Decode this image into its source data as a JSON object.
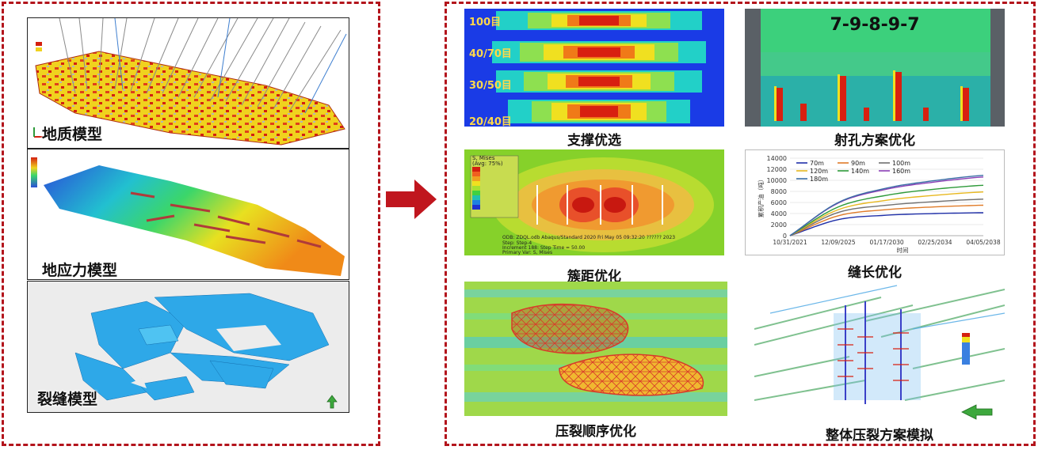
{
  "left_models": [
    {
      "label": "地质模型"
    },
    {
      "label": "地应力模型"
    },
    {
      "label": "裂缝模型"
    }
  ],
  "right_panels": {
    "proppant": {
      "caption": "支撑优选",
      "meshes": [
        "100目",
        "40/70目",
        "30/50目",
        "20/40目"
      ]
    },
    "perforation": {
      "caption": "射孔方案优化",
      "scheme": "7-9-8-9-7"
    },
    "spacing": {
      "caption": "簇距优化",
      "legend_title": "S, Mises",
      "legend_sub": "(Avg: 75%)",
      "footer_line1": "ODB: ZDQL.odb    Abaqus/Standard 2020    Fri May 05 09:32:20 ?????? 2023",
      "footer_line2": "Step: Step-4",
      "footer_line3": "Increment    188: Step Time =     50.00",
      "footer_line4": "Primary Var: S, Mises"
    },
    "frac_length": {
      "caption": "缝长优化"
    },
    "sequence": {
      "caption": "压裂顺序优化"
    },
    "overall": {
      "caption": "整体压裂方案模拟"
    }
  },
  "chart_data": {
    "type": "line",
    "title": "",
    "xlabel": "时间",
    "ylabel": "累积产油（吨）",
    "x_ticks": [
      "10/31/2021",
      "12/09/2025",
      "01/17/2030",
      "02/25/2034",
      "04/05/2038"
    ],
    "y_ticks": [
      0,
      2000,
      4000,
      6000,
      8000,
      10000,
      12000,
      14000
    ],
    "ylim": [
      0,
      14000
    ],
    "x": [
      2021.83,
      2025.94,
      2030.05,
      2034.15,
      2038.26
    ],
    "legend_position": "top-left",
    "series": [
      {
        "name": "70m",
        "color": "#1f2fa8",
        "values": [
          0,
          2900,
          3700,
          4000,
          4150
        ]
      },
      {
        "name": "90m",
        "color": "#e07b28",
        "values": [
          0,
          3600,
          4700,
          5200,
          5500
        ]
      },
      {
        "name": "100m",
        "color": "#707070",
        "values": [
          0,
          4200,
          5500,
          6150,
          6600
        ]
      },
      {
        "name": "120m",
        "color": "#e8b820",
        "values": [
          0,
          4700,
          6400,
          7300,
          7900
        ]
      },
      {
        "name": "140m",
        "color": "#2e9a3a",
        "values": [
          0,
          5200,
          7300,
          8400,
          9100
        ]
      },
      {
        "name": "160m",
        "color": "#8a3fb5",
        "values": [
          0,
          5900,
          8400,
          9700,
          10600
        ]
      },
      {
        "name": "180m",
        "color": "#3a6ea5",
        "values": [
          0,
          6000,
          8600,
          9950,
          10900
        ]
      }
    ]
  }
}
